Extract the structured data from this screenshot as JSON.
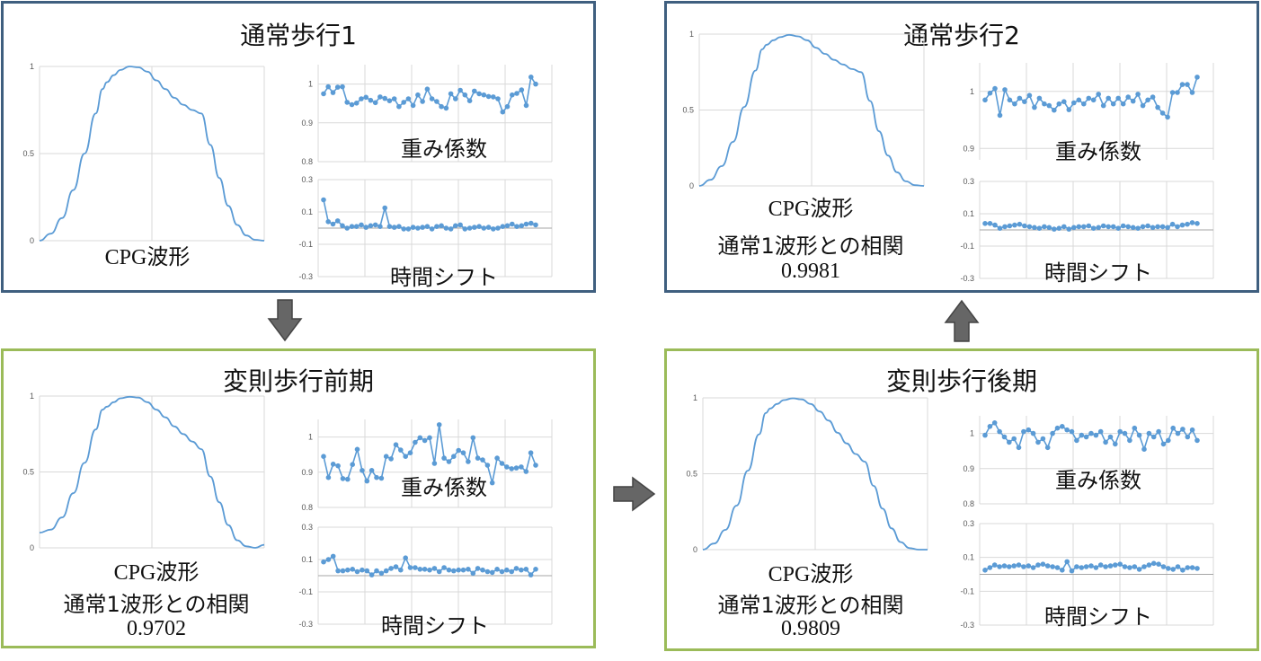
{
  "colors": {
    "blue_border": "#3f5f7f",
    "green_border": "#9bbb59",
    "line": "#5b9bd5",
    "grid": "#d9d9d9",
    "arrow": "#666666"
  },
  "panels": [
    {
      "id": "normal1",
      "title": "通常歩行1",
      "style": "blue",
      "cpg_label": "CPG波形",
      "corr_label": "",
      "corr_value": "",
      "weight_label": "重み係数",
      "shift_label": "時間シフト"
    },
    {
      "id": "normal2",
      "title": "通常歩行2",
      "style": "blue",
      "cpg_label": "CPG波形",
      "corr_label": "通常1波形との相関",
      "corr_value": "0.9981",
      "weight_label": "重み係数",
      "shift_label": "時間シフト"
    },
    {
      "id": "irregular_early",
      "title": "変則歩行前期",
      "style": "green",
      "cpg_label": "CPG波形",
      "corr_label": "通常1波形との相関",
      "corr_value": "0.9702",
      "weight_label": "重み係数",
      "shift_label": "時間シフト"
    },
    {
      "id": "irregular_late",
      "title": "変則歩行後期",
      "style": "green",
      "cpg_label": "CPG波形",
      "corr_label": "通常1波形との相関",
      "corr_value": "0.9809",
      "weight_label": "重み係数",
      "shift_label": "時間シフト"
    }
  ],
  "chart_data": [
    {
      "panel": "normal1",
      "chart": "cpg",
      "type": "line",
      "y_ticks": [
        "0",
        "0.5",
        "1"
      ],
      "ylim": [
        0,
        1
      ],
      "x": [
        0,
        0.05,
        0.1,
        0.15,
        0.2,
        0.25,
        0.28,
        0.3,
        0.33,
        0.36,
        0.4,
        0.44,
        0.48,
        0.52,
        0.56,
        0.6,
        0.64,
        0.68,
        0.72,
        0.76,
        0.8,
        0.84,
        0.88,
        0.92,
        0.96,
        1.0
      ],
      "y": [
        0,
        0.04,
        0.13,
        0.29,
        0.5,
        0.73,
        0.87,
        0.91,
        0.95,
        0.98,
        1.0,
        0.995,
        0.97,
        0.92,
        0.87,
        0.82,
        0.78,
        0.75,
        0.73,
        0.55,
        0.36,
        0.2,
        0.09,
        0.03,
        0.005,
        0
      ]
    },
    {
      "panel": "normal1",
      "chart": "weights",
      "type": "line",
      "y_ticks": [
        "0.8",
        "0.9",
        "1"
      ],
      "ylim": [
        0.8,
        1.05
      ],
      "values": [
        0.975,
        0.993,
        0.978,
        0.992,
        0.993,
        0.953,
        0.947,
        0.951,
        0.962,
        0.966,
        0.958,
        0.952,
        0.967,
        0.963,
        0.957,
        0.962,
        0.942,
        0.953,
        0.962,
        0.945,
        0.972,
        0.955,
        0.987,
        0.962,
        0.955,
        0.942,
        0.938,
        0.975,
        0.962,
        0.984,
        0.972,
        0.957,
        0.982,
        0.975,
        0.972,
        0.968,
        0.967,
        0.962,
        0.928,
        0.942,
        0.972,
        0.976,
        0.985,
        0.945,
        1.018,
        1.0
      ]
    },
    {
      "panel": "normal1",
      "chart": "shift",
      "type": "line",
      "y_ticks": [
        "-0.3",
        "-0.1",
        "0.1",
        "0.3"
      ],
      "ylim": [
        -0.3,
        0.3
      ],
      "values": [
        0.175,
        0.04,
        0.025,
        0.045,
        0.015,
        0.0,
        0.01,
        0.01,
        0.02,
        0.005,
        0.015,
        0.02,
        0.01,
        0.125,
        0.01,
        0.005,
        0.01,
        -0.005,
        -0.005,
        0.005,
        0.0,
        0.005,
        0.01,
        -0.005,
        0.01,
        0.015,
        0.0,
        -0.005,
        0.015,
        0.02,
        -0.005,
        0.0,
        0.005,
        0.01,
        0.0,
        0.005,
        -0.005,
        0.0,
        0.01,
        0.015,
        0.025,
        0.01,
        0.015,
        0.025,
        0.03,
        0.02
      ]
    },
    {
      "panel": "normal2",
      "chart": "cpg",
      "type": "line",
      "y_ticks": [
        "0",
        "0.5",
        "1"
      ],
      "ylim": [
        0,
        1
      ],
      "x": [
        0,
        0.05,
        0.1,
        0.15,
        0.2,
        0.25,
        0.28,
        0.3,
        0.33,
        0.36,
        0.4,
        0.44,
        0.48,
        0.52,
        0.56,
        0.6,
        0.64,
        0.68,
        0.72,
        0.76,
        0.8,
        0.84,
        0.88,
        0.92,
        0.96,
        1.0
      ],
      "y": [
        0,
        0.04,
        0.13,
        0.29,
        0.52,
        0.76,
        0.9,
        0.93,
        0.96,
        0.98,
        0.995,
        0.985,
        0.96,
        0.91,
        0.87,
        0.83,
        0.8,
        0.77,
        0.75,
        0.56,
        0.36,
        0.2,
        0.09,
        0.03,
        0.005,
        0
      ]
    },
    {
      "panel": "normal2",
      "chart": "weights",
      "type": "line",
      "y_ticks": [
        "0.9",
        "1"
      ],
      "ylim": [
        0.88,
        1.05
      ],
      "values": [
        0.985,
        0.997,
        1.005,
        0.958,
        1.003,
        0.985,
        0.978,
        0.988,
        0.982,
        0.993,
        0.972,
        0.988,
        0.978,
        0.975,
        0.967,
        0.978,
        0.982,
        0.968,
        0.98,
        0.985,
        0.978,
        0.988,
        0.985,
        0.995,
        0.975,
        0.988,
        0.978,
        0.988,
        0.978,
        0.99,
        0.983,
        0.995,
        0.975,
        0.985,
        0.99,
        0.972,
        0.962,
        0.955,
        0.998,
        0.998,
        1.012,
        1.012,
        0.998,
        1.025
      ]
    },
    {
      "panel": "normal2",
      "chart": "shift",
      "type": "line",
      "y_ticks": [
        "-0.3",
        "-0.1",
        "0.1",
        "0.3"
      ],
      "ylim": [
        -0.3,
        0.3
      ],
      "values": [
        0.04,
        0.04,
        0.03,
        0.01,
        0.02,
        0.025,
        0.03,
        0.035,
        0.025,
        0.02,
        0.015,
        0.01,
        0.02,
        0.015,
        0.005,
        0.01,
        0.02,
        0.005,
        0.015,
        0.02,
        0.02,
        0.025,
        0.01,
        0.015,
        0.025,
        0.02,
        0.02,
        0.01,
        0.025,
        0.02,
        0.015,
        0.01,
        0.02,
        0.025,
        0.015,
        0.02,
        0.02,
        0.015,
        0.035,
        0.02,
        0.03,
        0.035,
        0.045,
        0.04
      ]
    },
    {
      "panel": "irregular_early",
      "chart": "cpg",
      "type": "line",
      "y_ticks": [
        "0",
        "0.5",
        "1"
      ],
      "ylim": [
        0,
        1
      ],
      "x": [
        0,
        0.05,
        0.1,
        0.15,
        0.2,
        0.25,
        0.28,
        0.3,
        0.33,
        0.36,
        0.4,
        0.44,
        0.48,
        0.52,
        0.56,
        0.6,
        0.64,
        0.68,
        0.72,
        0.76,
        0.8,
        0.84,
        0.88,
        0.92,
        0.96,
        1.0
      ],
      "y": [
        0.1,
        0.12,
        0.2,
        0.36,
        0.56,
        0.78,
        0.91,
        0.93,
        0.96,
        0.985,
        0.995,
        0.99,
        0.96,
        0.91,
        0.86,
        0.8,
        0.75,
        0.7,
        0.65,
        0.47,
        0.3,
        0.15,
        0.05,
        0.01,
        0.0,
        0.02
      ]
    },
    {
      "panel": "irregular_early",
      "chart": "weights",
      "type": "line",
      "y_ticks": [
        "0.8",
        "0.9",
        "1"
      ],
      "ylim": [
        0.8,
        1.05
      ],
      "values": [
        0.945,
        0.885,
        0.923,
        0.918,
        0.882,
        0.88,
        0.922,
        0.965,
        0.905,
        0.875,
        0.905,
        0.885,
        0.883,
        0.945,
        0.938,
        0.978,
        0.963,
        0.945,
        0.955,
        0.985,
        0.998,
        0.99,
        0.998,
        0.925,
        1.035,
        0.94,
        0.93,
        0.945,
        0.962,
        0.955,
        0.93,
        0.998,
        0.94,
        0.935,
        0.92,
        0.87,
        0.94,
        0.925,
        0.915,
        0.91,
        0.912,
        0.915,
        0.902,
        0.955,
        0.92
      ]
    },
    {
      "panel": "irregular_early",
      "chart": "shift",
      "type": "line",
      "y_ticks": [
        "-0.3",
        "-0.1",
        "0.1",
        "0.3"
      ],
      "ylim": [
        -0.3,
        0.3
      ],
      "values": [
        0.085,
        0.1,
        0.12,
        0.03,
        0.03,
        0.035,
        0.04,
        0.025,
        0.035,
        0.03,
        0.005,
        0.03,
        0.015,
        0.03,
        0.045,
        0.055,
        0.035,
        0.11,
        0.05,
        0.05,
        0.04,
        0.04,
        0.035,
        0.045,
        0.025,
        0.05,
        0.035,
        0.03,
        0.035,
        0.035,
        0.04,
        0.015,
        0.045,
        0.035,
        0.025,
        0.02,
        0.04,
        0.025,
        0.035,
        0.025,
        0.045,
        0.035,
        0.04,
        0.005,
        0.04
      ]
    },
    {
      "panel": "irregular_late",
      "chart": "cpg",
      "type": "line",
      "y_ticks": [
        "0",
        "0.5",
        "1"
      ],
      "ylim": [
        0,
        1
      ],
      "x": [
        0,
        0.05,
        0.1,
        0.15,
        0.2,
        0.25,
        0.28,
        0.3,
        0.33,
        0.36,
        0.4,
        0.44,
        0.48,
        0.52,
        0.56,
        0.6,
        0.64,
        0.68,
        0.72,
        0.76,
        0.8,
        0.84,
        0.88,
        0.92,
        0.96,
        1.0
      ],
      "y": [
        0,
        0.04,
        0.13,
        0.29,
        0.52,
        0.76,
        0.9,
        0.93,
        0.96,
        0.985,
        0.997,
        0.99,
        0.96,
        0.91,
        0.85,
        0.77,
        0.7,
        0.63,
        0.58,
        0.42,
        0.27,
        0.14,
        0.05,
        0.01,
        0.0,
        0
      ]
    },
    {
      "panel": "irregular_late",
      "chart": "weights",
      "type": "line",
      "y_ticks": [
        "0.8",
        "0.9",
        "1"
      ],
      "ylim": [
        0.8,
        1.05
      ],
      "values": [
        0.995,
        1.02,
        1.03,
        1.005,
        0.99,
        0.975,
        0.985,
        0.96,
        1.005,
        1.01,
        1.0,
        0.975,
        0.985,
        0.96,
        1.0,
        1.015,
        1.02,
        1.01,
        1.005,
        0.98,
        0.995,
        0.99,
        1.0,
        0.995,
        1.005,
        0.975,
        0.99,
        0.97,
        1.005,
        1.0,
        0.98,
        1.015,
        0.995,
        0.955,
        1.0,
        0.99,
        1.005,
        0.97,
        0.98,
        1.015,
        1.0,
        1.012,
        0.99,
        1.01,
        0.98
      ]
    },
    {
      "panel": "irregular_late",
      "chart": "shift",
      "type": "line",
      "y_ticks": [
        "-0.3",
        "-0.1",
        "0.1",
        "0.3"
      ],
      "ylim": [
        -0.3,
        0.3
      ],
      "values": [
        0.025,
        0.04,
        0.055,
        0.045,
        0.05,
        0.045,
        0.05,
        0.055,
        0.045,
        0.05,
        0.04,
        0.055,
        0.06,
        0.05,
        0.045,
        0.04,
        0.025,
        0.075,
        0.02,
        0.045,
        0.04,
        0.045,
        0.05,
        0.04,
        0.055,
        0.045,
        0.05,
        0.055,
        0.06,
        0.045,
        0.04,
        0.045,
        0.03,
        0.045,
        0.055,
        0.065,
        0.06,
        0.045,
        0.035,
        0.03,
        0.045,
        0.025,
        0.04,
        0.04,
        0.035
      ]
    }
  ]
}
